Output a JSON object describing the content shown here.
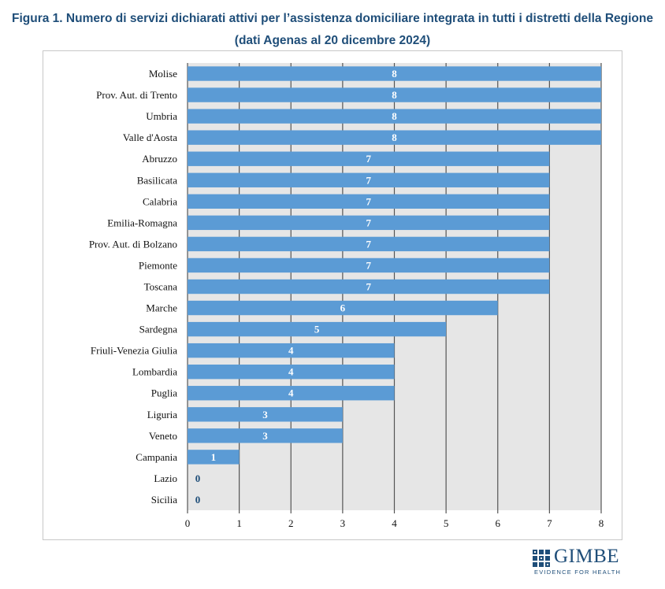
{
  "figure": {
    "title": "Figura 1. Numero di servizi dichiarati attivi per l’assistenza domiciliare integrata in tutti i distretti della Regione (dati Agenas al 20 dicembre 2024)"
  },
  "chart_data": {
    "type": "bar",
    "orientation": "horizontal",
    "title": "Numero di servizi dichiarati attivi per l’assistenza domiciliare integrata in tutti i distretti della Regione (dati Agenas al 20 dicembre 2024)",
    "xlabel": "",
    "ylabel": "",
    "xlim": [
      0,
      8
    ],
    "xticks": [
      0,
      1,
      2,
      3,
      4,
      5,
      6,
      7,
      8
    ],
    "grid": true,
    "categories": [
      "Molise",
      "Prov. Aut. di Trento",
      "Umbria",
      "Valle d'Aosta",
      "Abruzzo",
      "Basilicata",
      "Calabria",
      "Emilia-Romagna",
      "Prov. Aut. di Bolzano",
      "Piemonte",
      "Toscana",
      "Marche",
      "Sardegna",
      "Friuli-Venezia Giulia",
      "Lombardia",
      "Puglia",
      "Liguria",
      "Veneto",
      "Campania",
      "Lazio",
      "Sicilia"
    ],
    "values": [
      8,
      8,
      8,
      8,
      7,
      7,
      7,
      7,
      7,
      7,
      7,
      6,
      5,
      4,
      4,
      4,
      3,
      3,
      1,
      0,
      0
    ],
    "bar_color": "#5b9bd5",
    "background_color": "#e6e6e6",
    "label_color_inside": "#ffffff",
    "label_color_zero": "#1f4e79"
  },
  "logo": {
    "name": "GIMBE",
    "tagline": "EVIDENCE FOR HEALTH",
    "color": "#1f4e79"
  }
}
